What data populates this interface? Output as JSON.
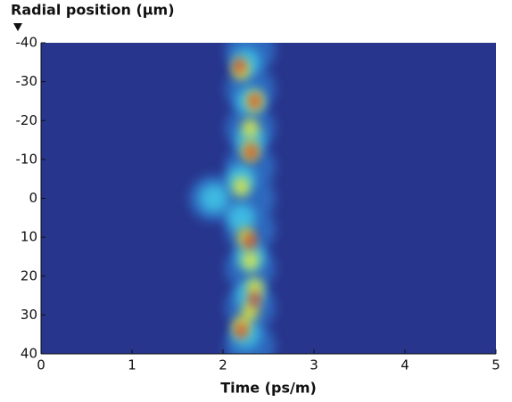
{
  "chart_data": {
    "type": "heatmap",
    "title": "Radial position (µm)",
    "x_label": "Time (ps/m)",
    "background": "#28358c",
    "xlim": [
      0,
      5
    ],
    "xticks": [
      0,
      1,
      2,
      3,
      4,
      5
    ],
    "ylim": [
      -40,
      40
    ],
    "yticks": [
      -40,
      -30,
      -20,
      -10,
      0,
      10,
      20,
      30,
      40
    ],
    "series": [
      {
        "color": "#2f6fc4",
        "x": [
          2.3,
          2.3,
          2.3,
          2.3,
          2.3,
          2.3,
          2.3,
          2.3,
          2.3,
          1.9
        ],
        "y": [
          -38,
          -28,
          -18,
          -8,
          0,
          8,
          18,
          28,
          38,
          0
        ]
      },
      {
        "color": "#3fc2e6",
        "x": [
          2.25,
          2.3,
          2.3,
          2.2,
          2.2,
          2.3,
          2.3,
          2.25,
          1.9
        ],
        "y": [
          -35,
          -25,
          -15,
          -5,
          5,
          15,
          25,
          35,
          0
        ]
      },
      {
        "color": "#e6e83c",
        "x": [
          2.2,
          2.35,
          2.3,
          2.3,
          2.2,
          2.25,
          2.3,
          2.35,
          2.3,
          2.2
        ],
        "y": [
          -33,
          -25,
          -18,
          -12,
          -3,
          10,
          16,
          23,
          29,
          33
        ]
      },
      {
        "color": "#d42a1c",
        "x": [
          2.18,
          2.35,
          2.31,
          2.3,
          2.35,
          2.2
        ],
        "y": [
          -34,
          -25,
          -12,
          11,
          26,
          34
        ]
      }
    ]
  }
}
